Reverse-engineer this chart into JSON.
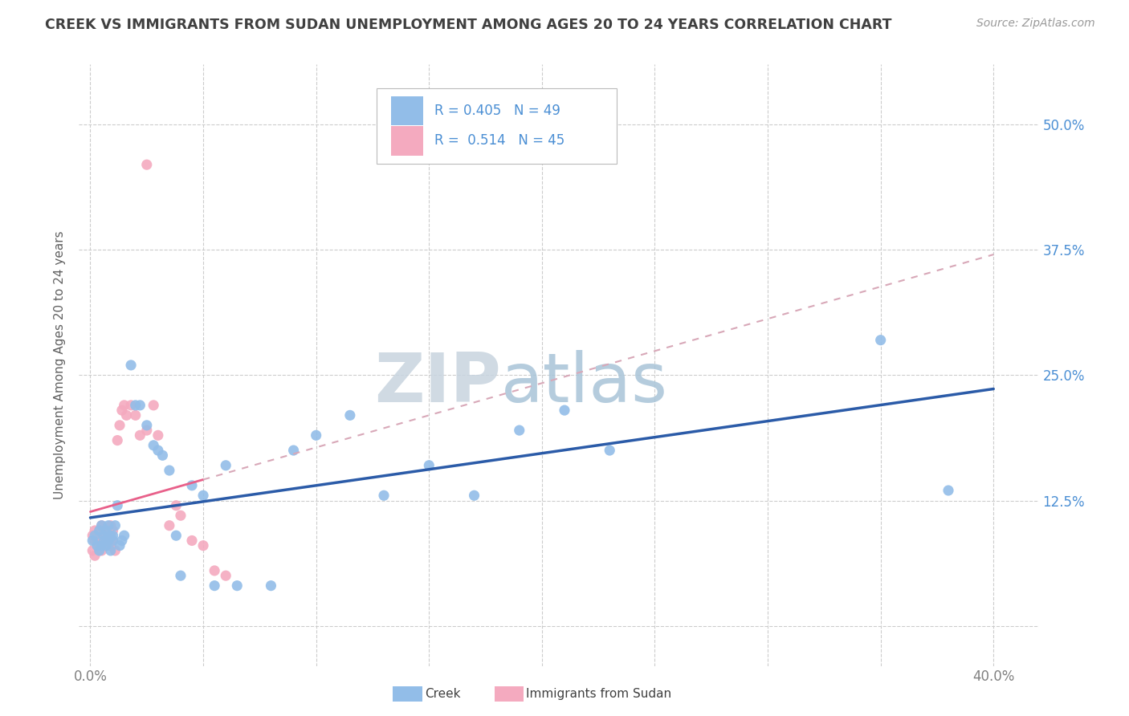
{
  "title": "CREEK VS IMMIGRANTS FROM SUDAN UNEMPLOYMENT AMONG AGES 20 TO 24 YEARS CORRELATION CHART",
  "source_text": "Source: ZipAtlas.com",
  "ylabel": "Unemployment Among Ages 20 to 24 years",
  "xlim": [
    -0.005,
    0.42
  ],
  "ylim": [
    -0.04,
    0.56
  ],
  "xtick_positions": [
    0.0,
    0.05,
    0.1,
    0.15,
    0.2,
    0.25,
    0.3,
    0.35,
    0.4
  ],
  "ytick_positions": [
    0.0,
    0.125,
    0.25,
    0.375,
    0.5
  ],
  "yticklabels_right": [
    "",
    "12.5%",
    "25.0%",
    "37.5%",
    "50.0%"
  ],
  "creek_R": 0.405,
  "creek_N": 49,
  "sudan_R": 0.514,
  "sudan_N": 45,
  "creek_color": "#92BDE8",
  "sudan_color": "#F4AABF",
  "creek_line_color": "#2B5BA8",
  "sudan_line_color": "#E8608A",
  "sudan_line_dash_color": "#D8A8B8",
  "R_value_color": "#4B8FD4",
  "background_color": "#FFFFFF",
  "grid_color": "#CCCCCC",
  "title_color": "#404040",
  "label_color": "#808080",
  "creek_x": [
    0.001,
    0.002,
    0.003,
    0.004,
    0.004,
    0.005,
    0.005,
    0.006,
    0.006,
    0.007,
    0.007,
    0.008,
    0.008,
    0.009,
    0.009,
    0.01,
    0.01,
    0.011,
    0.012,
    0.013,
    0.014,
    0.015,
    0.018,
    0.02,
    0.022,
    0.025,
    0.028,
    0.03,
    0.032,
    0.035,
    0.038,
    0.04,
    0.045,
    0.05,
    0.055,
    0.06,
    0.065,
    0.08,
    0.09,
    0.1,
    0.115,
    0.13,
    0.15,
    0.17,
    0.19,
    0.21,
    0.23,
    0.35,
    0.38
  ],
  "creek_y": [
    0.085,
    0.09,
    0.08,
    0.095,
    0.075,
    0.1,
    0.08,
    0.09,
    0.085,
    0.095,
    0.08,
    0.1,
    0.085,
    0.09,
    0.075,
    0.09,
    0.085,
    0.1,
    0.12,
    0.08,
    0.085,
    0.09,
    0.26,
    0.22,
    0.22,
    0.2,
    0.18,
    0.175,
    0.17,
    0.155,
    0.09,
    0.05,
    0.14,
    0.13,
    0.04,
    0.16,
    0.04,
    0.04,
    0.175,
    0.19,
    0.21,
    0.13,
    0.16,
    0.13,
    0.195,
    0.215,
    0.175,
    0.285,
    0.135
  ],
  "sudan_x": [
    0.001,
    0.001,
    0.002,
    0.002,
    0.002,
    0.003,
    0.003,
    0.003,
    0.004,
    0.004,
    0.004,
    0.005,
    0.005,
    0.005,
    0.006,
    0.006,
    0.006,
    0.007,
    0.007,
    0.008,
    0.008,
    0.009,
    0.009,
    0.01,
    0.01,
    0.011,
    0.012,
    0.013,
    0.014,
    0.015,
    0.016,
    0.018,
    0.02,
    0.022,
    0.025,
    0.028,
    0.03,
    0.035,
    0.038,
    0.04,
    0.045,
    0.05,
    0.055,
    0.06,
    0.025
  ],
  "sudan_y": [
    0.075,
    0.09,
    0.085,
    0.095,
    0.07,
    0.085,
    0.09,
    0.08,
    0.09,
    0.085,
    0.095,
    0.075,
    0.085,
    0.1,
    0.085,
    0.09,
    0.095,
    0.08,
    0.09,
    0.085,
    0.095,
    0.1,
    0.08,
    0.085,
    0.095,
    0.075,
    0.185,
    0.2,
    0.215,
    0.22,
    0.21,
    0.22,
    0.21,
    0.19,
    0.195,
    0.22,
    0.19,
    0.1,
    0.12,
    0.11,
    0.085,
    0.08,
    0.055,
    0.05,
    0.46
  ],
  "watermark_zip_color": "#C8D4DF",
  "watermark_atlas_color": "#A8C4D8"
}
